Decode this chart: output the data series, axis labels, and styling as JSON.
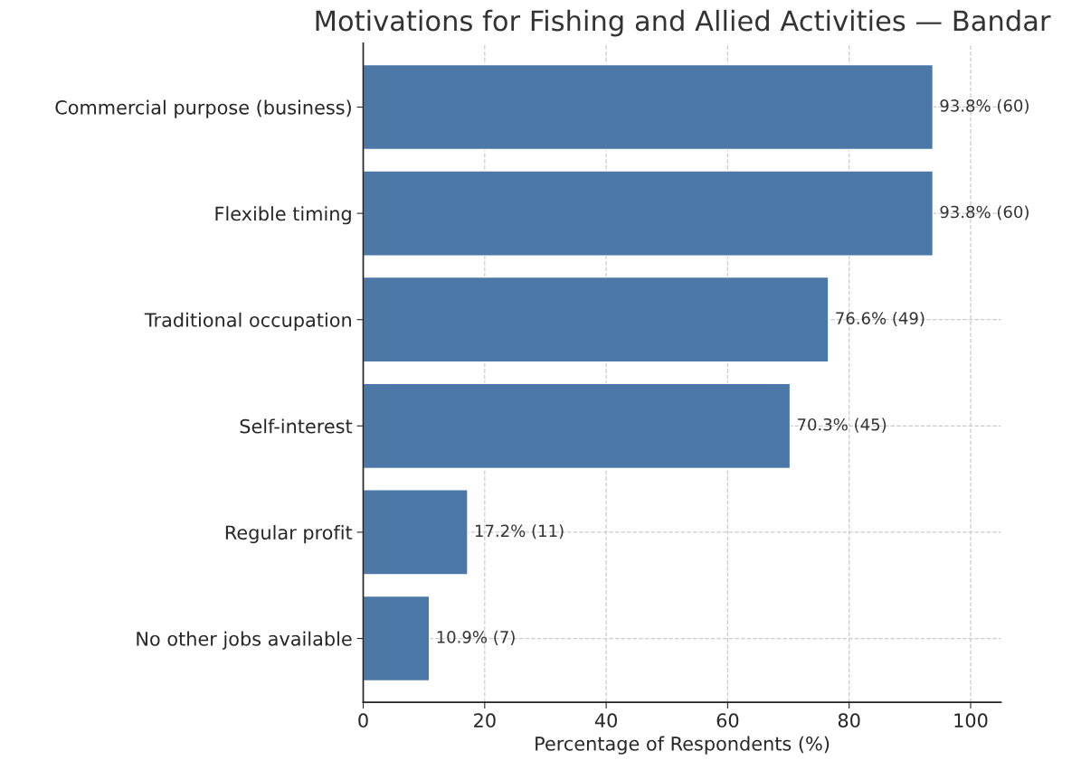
{
  "chart_data": {
    "type": "bar",
    "orientation": "horizontal",
    "title": "Motivations for Fishing and Allied Activities — Bandar",
    "xlabel": "Percentage of Respondents (%)",
    "categories": [
      "Commercial purpose (business)",
      "Flexible timing",
      "Traditional occupation",
      "Self-interest",
      "Regular profit",
      "No other jobs available"
    ],
    "values": [
      93.8,
      93.8,
      76.6,
      70.3,
      17.2,
      10.9
    ],
    "value_labels": [
      "93.8% (60)",
      "93.8% (60)",
      "76.6% (49)",
      "70.3% (45)",
      "17.2% (11)",
      "10.9% (7)"
    ],
    "color": "#4c78a8",
    "xlim": [
      0,
      105
    ],
    "xticks": [
      0,
      20,
      40,
      60,
      80,
      100
    ],
    "grid": true,
    "legend": false
  }
}
